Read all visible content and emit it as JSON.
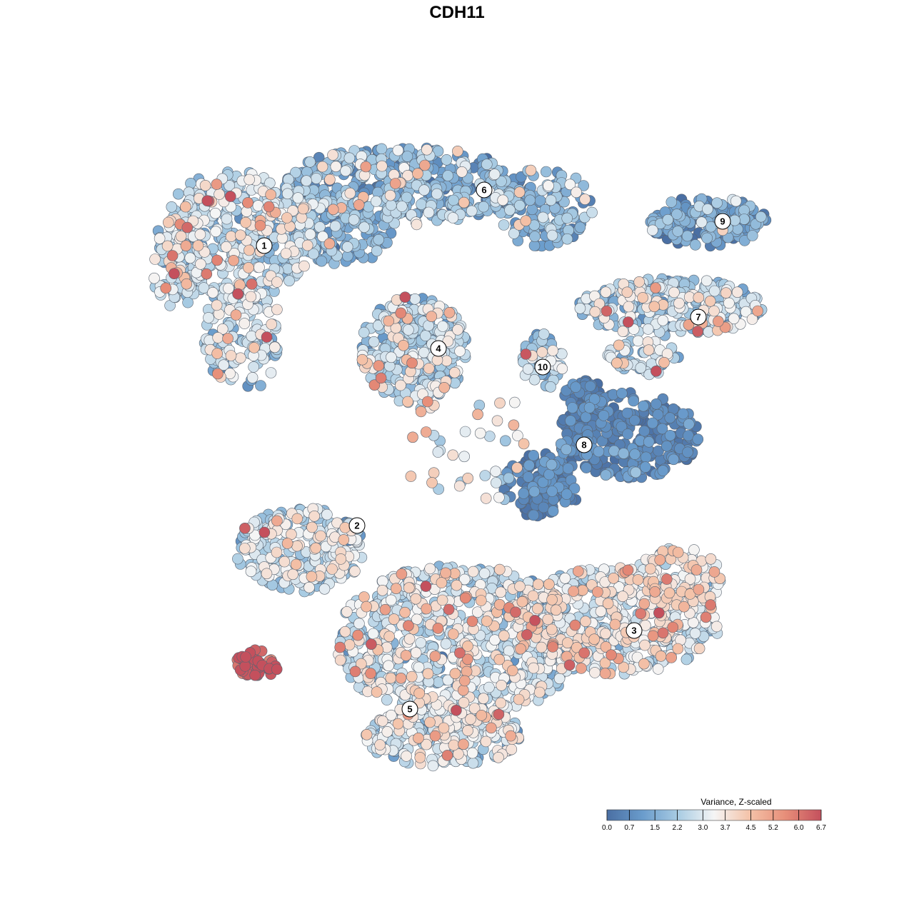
{
  "chart_data": {
    "type": "scatter",
    "title": "CDH11",
    "xlabel": "",
    "ylabel": "",
    "legend": {
      "title": "Variance, Z-scaled",
      "placement": "bottom-right",
      "range": [
        0.0,
        6.7
      ],
      "ticks": [
        "0.0",
        "0.7",
        "1.5",
        "2.2",
        "3.0",
        "3.7",
        "4.5",
        "5.2",
        "6.0",
        "6.7"
      ],
      "color_stops": [
        "#4a6fa3",
        "#6a9ccc",
        "#a9cce3",
        "#f5f5f5",
        "#f4c2a8",
        "#e78e79",
        "#c4505d"
      ]
    },
    "clusters": [
      {
        "label": "1",
        "value": 2.6
      },
      {
        "label": "2",
        "value": 2.8
      },
      {
        "label": "3",
        "value": 3.1
      },
      {
        "label": "4",
        "value": 2.3
      },
      {
        "label": "5",
        "value": 2.8
      },
      {
        "label": "6",
        "value": 1.6
      },
      {
        "label": "7",
        "value": 2.5
      },
      {
        "label": "8",
        "value": 0.5
      },
      {
        "label": "9",
        "value": 1.1
      },
      {
        "label": "10",
        "value": 2.0
      }
    ],
    "grid": false
  }
}
